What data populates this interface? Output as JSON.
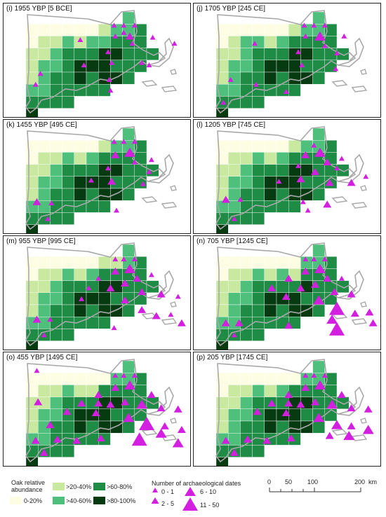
{
  "panels": [
    {
      "title": "(i) 1955 YBP [5 BCE]"
    },
    {
      "title": "(j) 1705 YBP [245 CE]"
    },
    {
      "title": "(k) 1455 YBP [495 CE]"
    },
    {
      "title": "(l) 1205 YBP [745 CE]"
    },
    {
      "title": "(m) 955 YBP [995 CE]"
    },
    {
      "title": "(n) 705 YBP [1245 CE]"
    },
    {
      "title": "(o) 455 YBP [1495 CE]"
    },
    {
      "title": "(p) 205 YBP [1745 CE]"
    }
  ],
  "legend": {
    "oak_title_line1": "Oak relative",
    "oak_title_line2": "abundance",
    "oak_classes": [
      {
        "label": "0-20%",
        "color": "#fdfde3"
      },
      {
        "label": ">20-40%",
        "color": "#c9e8a0"
      },
      {
        "label": ">40-60%",
        "color": "#4fc07c"
      },
      {
        "label": ">60-80%",
        "color": "#1e8c45"
      },
      {
        "label": ">80-100%",
        "color": "#063b12"
      }
    ],
    "dates_title": "Number of archaeological dates",
    "date_classes": [
      "0 - 1",
      "2 - 5",
      "6 - 10",
      "11 - 50"
    ],
    "triangle_color": "#d21fe0"
  },
  "scalebar": {
    "ticks": [
      "0",
      "50",
      "100",
      "200"
    ],
    "unit": "km"
  }
}
